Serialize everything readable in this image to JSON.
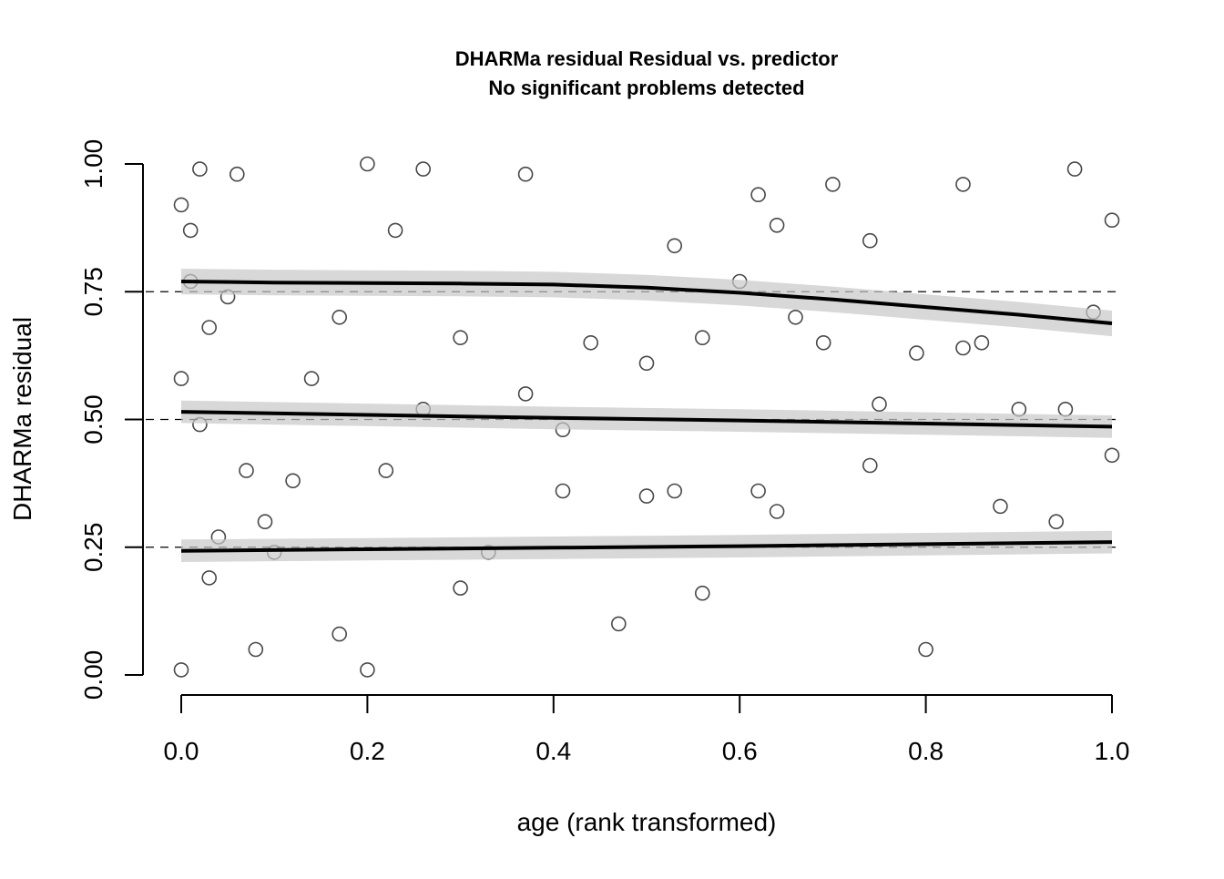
{
  "chart_data": {
    "type": "scatter",
    "title": "DHARMa residual Residual vs. predictor",
    "subtitle": "No significant problems detected",
    "xlabel": "age (rank transformed)",
    "ylabel": "DHARMa residual",
    "xlim": [
      0,
      1
    ],
    "ylim": [
      0,
      1
    ],
    "x_ticks": [
      0.0,
      0.2,
      0.4,
      0.6,
      0.8,
      1.0
    ],
    "x_tick_labels": [
      "0.0",
      "0.2",
      "0.4",
      "0.6",
      "0.8",
      "1.0"
    ],
    "y_ticks": [
      0,
      0.25,
      0.5,
      0.75,
      1
    ],
    "y_tick_labels": [
      "0.00",
      "0.25",
      "0.50",
      "0.75",
      "1.00"
    ],
    "reference_lines": [
      0.25,
      0.5,
      0.75
    ],
    "grid": false,
    "legend": "none",
    "point_style": "open circles, semi-transparent black",
    "point_count_estimate": 1000,
    "sample_points": [
      [
        0.0,
        0.01
      ],
      [
        0.0,
        0.58
      ],
      [
        0.0,
        0.92
      ],
      [
        0.01,
        0.77
      ],
      [
        0.01,
        0.87
      ],
      [
        0.02,
        0.99
      ],
      [
        0.02,
        0.49
      ],
      [
        0.03,
        0.19
      ],
      [
        0.03,
        0.68
      ],
      [
        0.04,
        0.27
      ],
      [
        0.05,
        0.74
      ],
      [
        0.06,
        0.98
      ],
      [
        0.07,
        0.4
      ],
      [
        0.08,
        0.05
      ],
      [
        0.09,
        0.3
      ],
      [
        0.1,
        0.24
      ],
      [
        0.12,
        0.38
      ],
      [
        0.14,
        0.58
      ],
      [
        0.17,
        0.08
      ],
      [
        0.17,
        0.7
      ],
      [
        0.2,
        0.01
      ],
      [
        0.2,
        1.0
      ],
      [
        0.22,
        0.4
      ],
      [
        0.23,
        0.87
      ],
      [
        0.26,
        0.52
      ],
      [
        0.26,
        0.99
      ],
      [
        0.3,
        0.17
      ],
      [
        0.3,
        0.66
      ],
      [
        0.33,
        0.24
      ],
      [
        0.37,
        0.55
      ],
      [
        0.37,
        0.98
      ],
      [
        0.41,
        0.36
      ],
      [
        0.41,
        0.48
      ],
      [
        0.44,
        0.65
      ],
      [
        0.47,
        0.1
      ],
      [
        0.5,
        0.35
      ],
      [
        0.5,
        0.61
      ],
      [
        0.53,
        0.36
      ],
      [
        0.53,
        0.84
      ],
      [
        0.56,
        0.16
      ],
      [
        0.56,
        0.66
      ],
      [
        0.6,
        0.77
      ],
      [
        0.62,
        0.36
      ],
      [
        0.62,
        0.94
      ],
      [
        0.64,
        0.32
      ],
      [
        0.64,
        0.88
      ],
      [
        0.66,
        0.7
      ],
      [
        0.69,
        0.65
      ],
      [
        0.7,
        0.96
      ],
      [
        0.74,
        0.41
      ],
      [
        0.74,
        0.85
      ],
      [
        0.75,
        0.53
      ],
      [
        0.79,
        0.63
      ],
      [
        0.8,
        0.05
      ],
      [
        0.84,
        0.64
      ],
      [
        0.84,
        0.96
      ],
      [
        0.86,
        0.65
      ],
      [
        0.88,
        0.33
      ],
      [
        0.9,
        0.52
      ],
      [
        0.94,
        0.3
      ],
      [
        0.95,
        0.52
      ],
      [
        0.96,
        0.99
      ],
      [
        0.98,
        0.71
      ],
      [
        1.0,
        0.43
      ],
      [
        1.0,
        0.89
      ]
    ],
    "series": [
      {
        "quantile": 0.25,
        "x": [
          0,
          0.2,
          0.4,
          0.6,
          0.8,
          1.0
        ],
        "y": [
          0.243,
          0.246,
          0.249,
          0.252,
          0.256,
          0.26
        ],
        "band_halfwidth": 0.022
      },
      {
        "quantile": 0.5,
        "x": [
          0,
          0.2,
          0.4,
          0.6,
          0.8,
          1.0
        ],
        "y": [
          0.515,
          0.509,
          0.503,
          0.498,
          0.492,
          0.486
        ],
        "band_halfwidth": 0.022
      },
      {
        "quantile": 0.75,
        "x": [
          0,
          0.1,
          0.2,
          0.3,
          0.4,
          0.5,
          0.6,
          0.7,
          0.8,
          0.9,
          1.0
        ],
        "y": [
          0.77,
          0.768,
          0.767,
          0.766,
          0.764,
          0.758,
          0.748,
          0.735,
          0.72,
          0.705,
          0.688
        ],
        "band_halfwidth": 0.025
      }
    ]
  }
}
